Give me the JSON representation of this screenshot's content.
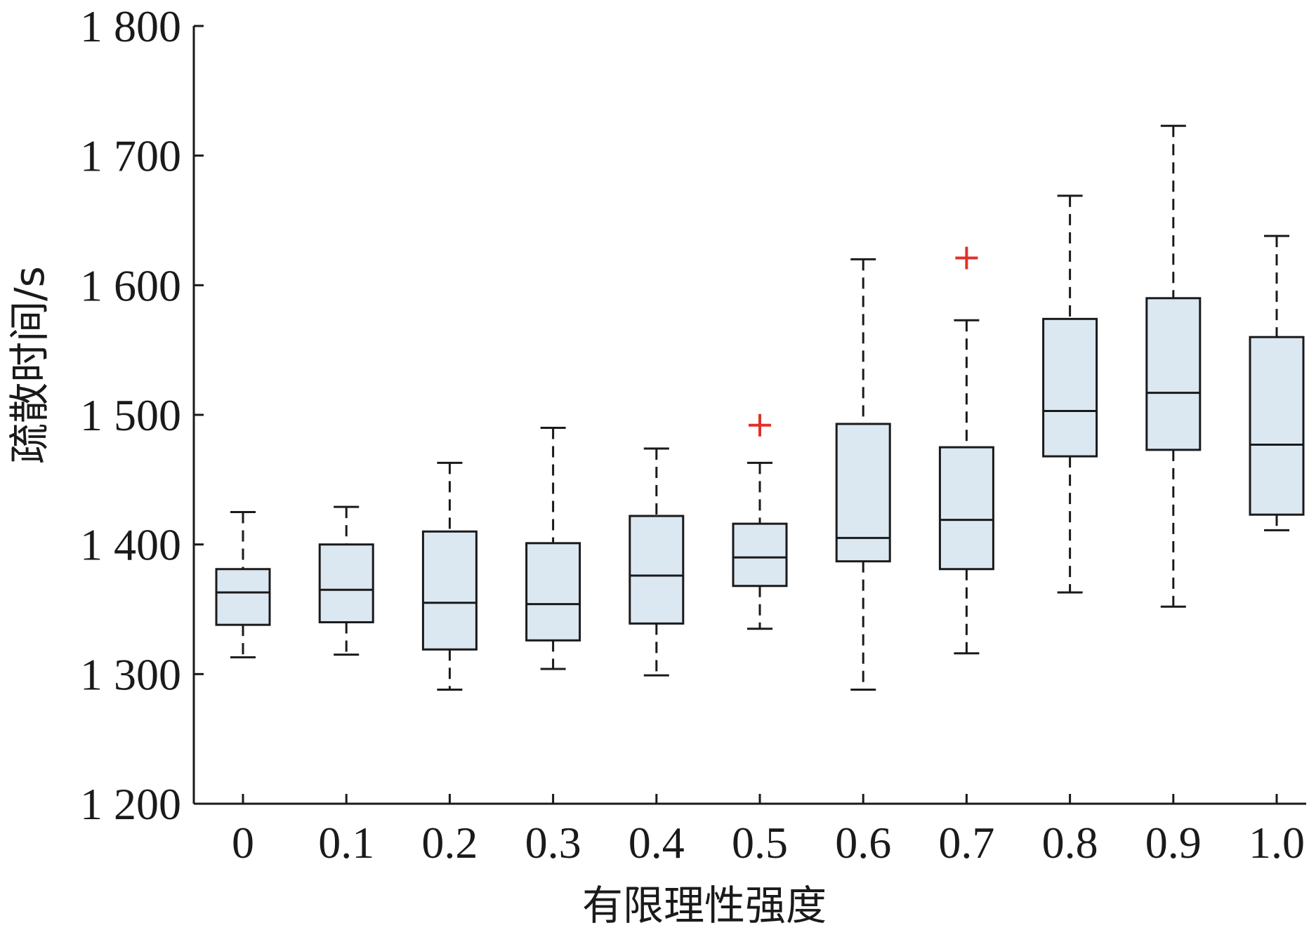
{
  "chart_data": {
    "type": "box",
    "xlabel": "有限理性强度",
    "ylabel": "疏散时间/s",
    "ylim": [
      1200,
      1800
    ],
    "yticks": [
      1200,
      1300,
      1400,
      1500,
      1600,
      1700,
      1800
    ],
    "ytick_labels": [
      "1 200",
      "1 300",
      "1 400",
      "1 500",
      "1 600",
      "1 700",
      "1 800"
    ],
    "categories": [
      "0",
      "0.1",
      "0.2",
      "0.3",
      "0.4",
      "0.5",
      "0.6",
      "0.7",
      "0.8",
      "0.9",
      "1.0"
    ],
    "boxes": [
      {
        "whisker_low": 1313,
        "q1": 1338,
        "median": 1363,
        "q3": 1381,
        "whisker_high": 1425,
        "outliers": []
      },
      {
        "whisker_low": 1315,
        "q1": 1340,
        "median": 1365,
        "q3": 1400,
        "whisker_high": 1429,
        "outliers": []
      },
      {
        "whisker_low": 1288,
        "q1": 1319,
        "median": 1355,
        "q3": 1410,
        "whisker_high": 1463,
        "outliers": []
      },
      {
        "whisker_low": 1304,
        "q1": 1326,
        "median": 1354,
        "q3": 1401,
        "whisker_high": 1490,
        "outliers": []
      },
      {
        "whisker_low": 1299,
        "q1": 1339,
        "median": 1376,
        "q3": 1422,
        "whisker_high": 1474,
        "outliers": []
      },
      {
        "whisker_low": 1335,
        "q1": 1368,
        "median": 1390,
        "q3": 1416,
        "whisker_high": 1463,
        "outliers": [
          1492
        ]
      },
      {
        "whisker_low": 1288,
        "q1": 1387,
        "median": 1405,
        "q3": 1493,
        "whisker_high": 1620,
        "outliers": []
      },
      {
        "whisker_low": 1316,
        "q1": 1381,
        "median": 1419,
        "q3": 1475,
        "whisker_high": 1573,
        "outliers": [
          1621
        ]
      },
      {
        "whisker_low": 1363,
        "q1": 1468,
        "median": 1503,
        "q3": 1574,
        "whisker_high": 1669,
        "outliers": []
      },
      {
        "whisker_low": 1352,
        "q1": 1473,
        "median": 1517,
        "q3": 1590,
        "whisker_high": 1723,
        "outliers": []
      },
      {
        "whisker_low": 1411,
        "q1": 1423,
        "median": 1477,
        "q3": 1560,
        "whisker_high": 1638,
        "outliers": []
      }
    ],
    "grid": false,
    "colors": {
      "box_fill": "#dce8f1",
      "box_stroke": "#1a1a1a",
      "outlier": "#e0302a",
      "axis": "#1a1a1a"
    }
  }
}
